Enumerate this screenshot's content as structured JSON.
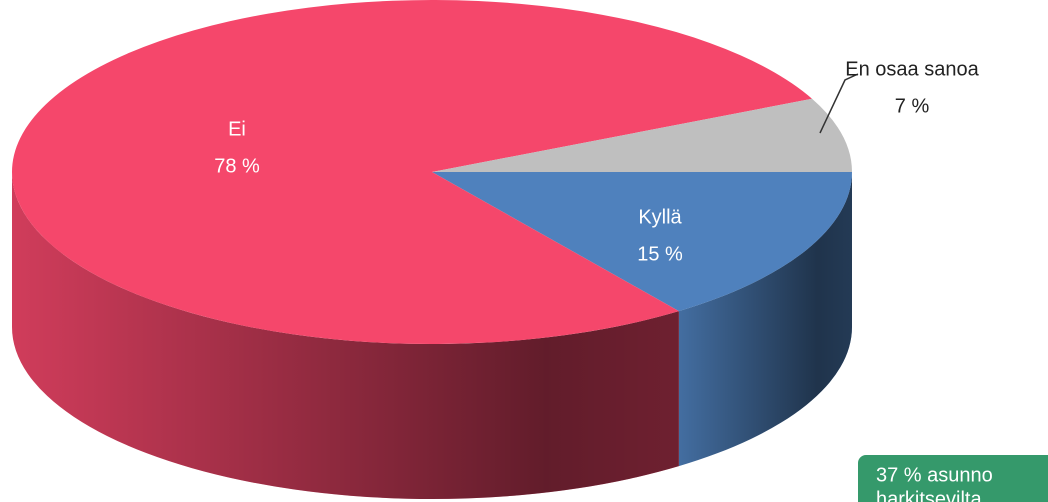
{
  "chart_data": {
    "type": "pie3d",
    "categories": [
      "Kyllä",
      "Ei",
      "En osaa sanoa"
    ],
    "values": [
      15,
      78,
      7
    ],
    "value_labels": [
      "15 %",
      "78 %",
      "7 %"
    ],
    "colors": [
      "#4f81bd",
      "#f5476b",
      "#bfbfbf"
    ],
    "annotation": [
      "37 % asunno",
      "harkitsevilta"
    ]
  }
}
